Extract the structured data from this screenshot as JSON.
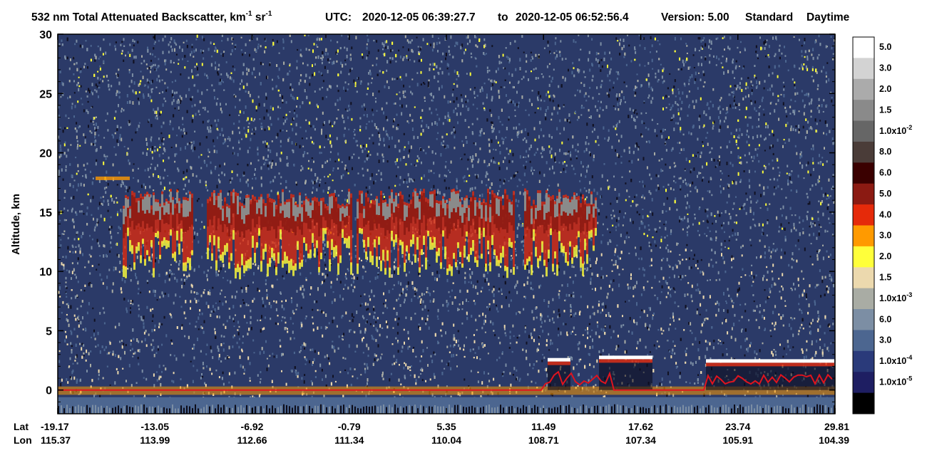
{
  "title": {
    "product": "532 nm Total Attenuated Backscatter, km",
    "unit_exp1": "-1",
    "unit_sr": " sr",
    "unit_exp2": "-1",
    "utc_label": "UTC:",
    "start_time": "2020-12-05 06:39:27.7",
    "to_word": "to",
    "end_time": "2020-12-05 06:52:56.4",
    "version": "Version: 5.00",
    "standard": "Standard",
    "daytime": "Daytime"
  },
  "chart_data": {
    "type": "heatmap",
    "ylabel": "Altitude, km",
    "ylim": [
      -2,
      30
    ],
    "yticks": [
      0,
      5,
      10,
      15,
      20,
      25,
      30
    ],
    "x_position_label_lat": "Lat",
    "x_position_label_lon": "Lon",
    "x_ticks": [
      {
        "lat": "-19.17",
        "lon": "115.37"
      },
      {
        "lat": "-13.05",
        "lon": "113.99"
      },
      {
        "lat": "-6.92",
        "lon": "112.66"
      },
      {
        "lat": "-0.79",
        "lon": "111.34"
      },
      {
        "lat": "5.35",
        "lon": "110.04"
      },
      {
        "lat": "11.49",
        "lon": "108.71"
      },
      {
        "lat": "17.62",
        "lon": "107.34"
      },
      {
        "lat": "23.74",
        "lon": "105.91"
      },
      {
        "lat": "29.81",
        "lon": "104.39"
      }
    ],
    "colorbar": {
      "bins": [
        {
          "color": "#ffffff",
          "label": "5.0",
          "exp": ""
        },
        {
          "color": "#d3d3d3",
          "label": "3.0",
          "exp": ""
        },
        {
          "color": "#ababab",
          "label": "2.0",
          "exp": ""
        },
        {
          "color": "#8a8a8a",
          "label": "1.5",
          "exp": ""
        },
        {
          "color": "#666666",
          "label": "1.0x10",
          "exp": "-2"
        },
        {
          "color": "#4a3c38",
          "label": "8.0",
          "exp": ""
        },
        {
          "color": "#3a0000",
          "label": "6.0",
          "exp": ""
        },
        {
          "color": "#8b1a12",
          "label": "5.0",
          "exp": ""
        },
        {
          "color": "#e52a0a",
          "label": "4.0",
          "exp": ""
        },
        {
          "color": "#ff9a00",
          "label": "3.0",
          "exp": ""
        },
        {
          "color": "#ffff3a",
          "label": "2.0",
          "exp": ""
        },
        {
          "color": "#ecd9ae",
          "label": "1.5",
          "exp": ""
        },
        {
          "color": "#a9aca4",
          "label": "1.0x10",
          "exp": "-3"
        },
        {
          "color": "#7c8ea4",
          "label": "6.0",
          "exp": ""
        },
        {
          "color": "#4c6690",
          "label": "3.0",
          "exp": ""
        },
        {
          "color": "#2a3a7a",
          "label": "1.0x10",
          "exp": "-4"
        },
        {
          "color": "#1e1e62",
          "label": "1.0x10",
          "exp": "-5"
        },
        {
          "color": "#000000",
          "label": "",
          "exp": ""
        }
      ]
    },
    "features": {
      "cirrus_layer_top_km": 17,
      "cirrus_layer_base_km": 10,
      "surface_elevation_km": 0,
      "low_cloud_top_km": 3
    }
  }
}
